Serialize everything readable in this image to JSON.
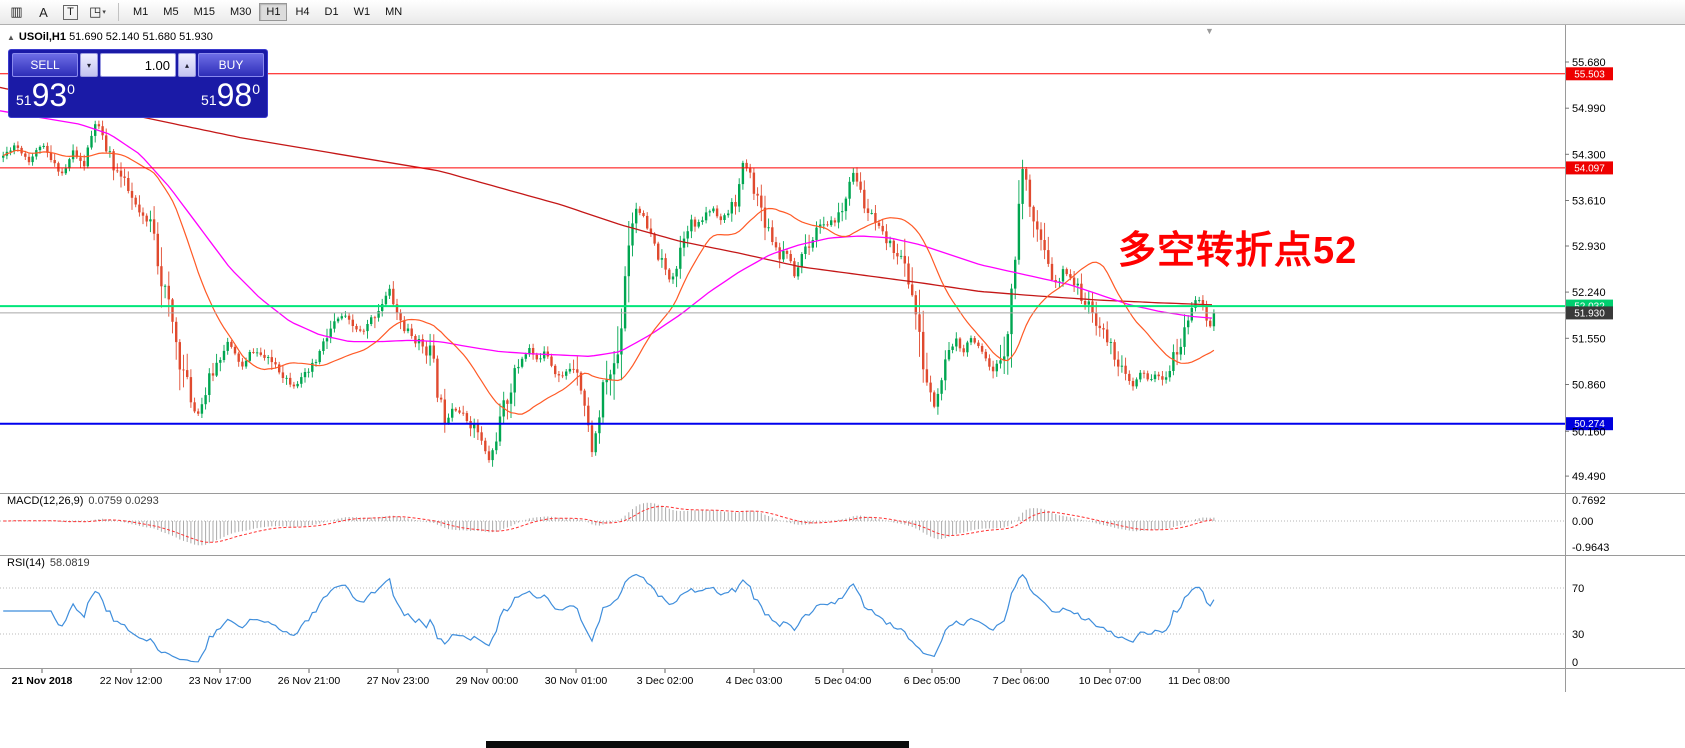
{
  "icons": {
    "collapse": "▲",
    "shift_marker": "▼",
    "volume_up": "▴",
    "volume_down": "▾",
    "tool_dropdown": "▾"
  },
  "toolbar": {
    "tools": [
      {
        "name": "chart-grid-icon",
        "glyph": "▥",
        "dropdown": false
      },
      {
        "name": "text-label-icon",
        "glyph": "A",
        "dropdown": false
      },
      {
        "name": "text-box-icon",
        "glyph": "T",
        "dropdown": false,
        "boxed": true
      },
      {
        "name": "shapes-tool-icon",
        "glyph": "◳",
        "dropdown": true
      }
    ],
    "timeframes": [
      {
        "label": "M1",
        "active": false
      },
      {
        "label": "M5",
        "active": false
      },
      {
        "label": "M15",
        "active": false
      },
      {
        "label": "M30",
        "active": false
      },
      {
        "label": "H1",
        "active": true
      },
      {
        "label": "H4",
        "active": false
      },
      {
        "label": "D1",
        "active": false
      },
      {
        "label": "W1",
        "active": false
      },
      {
        "label": "MN",
        "active": false
      }
    ]
  },
  "chart": {
    "title_symbol": "USOil,H1",
    "title_ohlc": "51.690 52.140 51.680 51.930",
    "trade_panel": {
      "sell_label": "SELL",
      "buy_label": "BUY",
      "volume": "1.00",
      "sell_small": "51",
      "sell_big": "93",
      "sell_sup": "0",
      "buy_small": "51",
      "buy_big": "98",
      "buy_sup": "0"
    },
    "annotation": {
      "text": "多空转折点52",
      "color": "#ff0000"
    },
    "current_price": "51.930",
    "hlines": [
      {
        "price": 55.503,
        "label": "55.503",
        "color": "#ff0000",
        "tag_bg": "#ee0000",
        "tag_fg": "#ffffff",
        "width": 1
      },
      {
        "price": 54.097,
        "label": "54.097",
        "color": "#ff0000",
        "tag_bg": "#ee0000",
        "tag_fg": "#ffffff",
        "width": 1
      },
      {
        "price": 52.032,
        "label": "52.032",
        "color": "#00e67a",
        "tag_bg": "#00cf6f",
        "tag_fg": "#ffffff",
        "width": 2
      },
      {
        "price": 51.93,
        "label": "51.930",
        "color": "#a8a8a8",
        "tag_bg": "#3a3a3a",
        "tag_fg": "#ffffff",
        "width": 1
      },
      {
        "price": 50.274,
        "label": "50.274",
        "color": "#0000ee",
        "tag_bg": "#0000dd",
        "tag_fg": "#ffffff",
        "width": 2
      }
    ]
  },
  "chart_data": {
    "type": "candlestick",
    "symbol": "USOil",
    "timeframe": "H1",
    "bars": 330,
    "last_close": 51.93,
    "price_axis_labels": [
      "55.680",
      "54.990",
      "54.300",
      "53.610",
      "52.930",
      "52.240",
      "51.550",
      "50.860",
      "50.160",
      "49.490"
    ],
    "time_ticks": [
      "21 Nov 2018",
      "22 Nov 12:00",
      "23 Nov 17:00",
      "26 Nov 21:00",
      "27 Nov 23:00",
      "29 Nov 00:00",
      "30 Nov 01:00",
      "3 Dec 02:00",
      "4 Dec 03:00",
      "5 Dec 04:00",
      "6 Dec 05:00",
      "7 Dec 06:00",
      "10 Dec 07:00",
      "11 Dec 08:00"
    ],
    "close_path": [
      [
        0,
        54.25
      ],
      [
        14,
        54.45
      ],
      [
        28,
        54.2
      ],
      [
        40,
        54.45
      ],
      [
        52,
        54.15
      ],
      [
        62,
        54.0
      ],
      [
        72,
        54.35
      ],
      [
        82,
        54.1
      ],
      [
        95,
        54.82
      ],
      [
        103,
        54.45
      ],
      [
        112,
        54.15
      ],
      [
        122,
        53.9
      ],
      [
        133,
        53.55
      ],
      [
        144,
        53.25
      ],
      [
        152,
        53.3
      ],
      [
        158,
        52.6
      ],
      [
        165,
        52.15
      ],
      [
        172,
        51.7
      ],
      [
        180,
        51.15
      ],
      [
        188,
        50.75
      ],
      [
        195,
        50.38
      ],
      [
        202,
        50.62
      ],
      [
        210,
        51.0
      ],
      [
        218,
        51.25
      ],
      [
        226,
        51.5
      ],
      [
        234,
        51.3
      ],
      [
        242,
        51.1
      ],
      [
        250,
        51.38
      ],
      [
        258,
        51.32
      ],
      [
        266,
        51.22
      ],
      [
        274,
        51.18
      ],
      [
        282,
        51.0
      ],
      [
        292,
        50.85
      ],
      [
        302,
        50.95
      ],
      [
        312,
        51.12
      ],
      [
        322,
        51.45
      ],
      [
        332,
        51.75
      ],
      [
        342,
        51.9
      ],
      [
        352,
        51.72
      ],
      [
        362,
        51.62
      ],
      [
        372,
        51.88
      ],
      [
        382,
        52.1
      ],
      [
        388,
        52.28
      ],
      [
        395,
        51.95
      ],
      [
        403,
        51.7
      ],
      [
        412,
        51.55
      ],
      [
        422,
        51.45
      ],
      [
        430,
        51.35
      ],
      [
        437,
        50.7
      ],
      [
        444,
        50.35
      ],
      [
        452,
        50.55
      ],
      [
        460,
        50.42
      ],
      [
        468,
        50.3
      ],
      [
        476,
        50.18
      ],
      [
        484,
        49.85
      ],
      [
        489,
        49.7
      ],
      [
        496,
        50.15
      ],
      [
        504,
        50.55
      ],
      [
        512,
        50.95
      ],
      [
        520,
        51.25
      ],
      [
        528,
        51.4
      ],
      [
        536,
        51.2
      ],
      [
        544,
        51.42
      ],
      [
        552,
        51.1
      ],
      [
        560,
        50.95
      ],
      [
        568,
        51.1
      ],
      [
        576,
        51.15
      ],
      [
        584,
        50.5
      ],
      [
        591,
        49.85
      ],
      [
        597,
        50.3
      ],
      [
        604,
        50.95
      ],
      [
        611,
        51.05
      ],
      [
        618,
        51.4
      ],
      [
        624,
        52.6
      ],
      [
        630,
        53.3
      ],
      [
        636,
        53.55
      ],
      [
        644,
        53.25
      ],
      [
        652,
        52.95
      ],
      [
        660,
        52.7
      ],
      [
        668,
        52.45
      ],
      [
        675,
        52.6
      ],
      [
        681,
        53.05
      ],
      [
        688,
        53.3
      ],
      [
        696,
        53.2
      ],
      [
        704,
        53.4
      ],
      [
        712,
        53.5
      ],
      [
        720,
        53.3
      ],
      [
        728,
        53.45
      ],
      [
        736,
        53.65
      ],
      [
        742,
        54.15
      ],
      [
        748,
        54.05
      ],
      [
        755,
        53.7
      ],
      [
        762,
        53.4
      ],
      [
        770,
        53.1
      ],
      [
        778,
        52.8
      ],
      [
        786,
        52.85
      ],
      [
        794,
        52.45
      ],
      [
        802,
        52.9
      ],
      [
        810,
        53.0
      ],
      [
        818,
        53.3
      ],
      [
        826,
        53.2
      ],
      [
        834,
        53.35
      ],
      [
        842,
        53.45
      ],
      [
        850,
        54.05
      ],
      [
        856,
        53.9
      ],
      [
        864,
        53.5
      ],
      [
        872,
        53.3
      ],
      [
        880,
        53.1
      ],
      [
        888,
        52.95
      ],
      [
        896,
        52.85
      ],
      [
        904,
        52.6
      ],
      [
        912,
        52.2
      ],
      [
        919,
        51.4
      ],
      [
        927,
        50.8
      ],
      [
        934,
        50.5
      ],
      [
        941,
        51.0
      ],
      [
        948,
        51.3
      ],
      [
        955,
        51.55
      ],
      [
        962,
        51.35
      ],
      [
        970,
        51.6
      ],
      [
        978,
        51.35
      ],
      [
        986,
        51.15
      ],
      [
        993,
        51.0
      ],
      [
        1000,
        51.3
      ],
      [
        1007,
        51.8
      ],
      [
        1013,
        52.5
      ],
      [
        1018,
        53.8
      ],
      [
        1022,
        54.1
      ],
      [
        1027,
        53.7
      ],
      [
        1033,
        53.35
      ],
      [
        1040,
        52.95
      ],
      [
        1048,
        52.55
      ],
      [
        1056,
        52.3
      ],
      [
        1063,
        52.6
      ],
      [
        1070,
        52.45
      ],
      [
        1078,
        52.25
      ],
      [
        1086,
        52.05
      ],
      [
        1094,
        51.85
      ],
      [
        1101,
        51.65
      ],
      [
        1109,
        51.45
      ],
      [
        1117,
        51.2
      ],
      [
        1125,
        50.95
      ],
      [
        1132,
        50.82
      ],
      [
        1140,
        51.05
      ],
      [
        1147,
        50.92
      ],
      [
        1154,
        51.02
      ],
      [
        1161,
        50.88
      ],
      [
        1168,
        51.1
      ],
      [
        1176,
        51.35
      ],
      [
        1183,
        51.6
      ],
      [
        1190,
        52.05
      ],
      [
        1196,
        52.2
      ],
      [
        1202,
        52.0
      ],
      [
        1208,
        51.68
      ],
      [
        1213,
        51.93
      ]
    ],
    "ma_medium_path": [
      [
        0,
        54.95
      ],
      [
        40,
        54.85
      ],
      [
        80,
        54.75
      ],
      [
        110,
        54.6
      ],
      [
        140,
        54.3
      ],
      [
        170,
        53.8
      ],
      [
        200,
        53.2
      ],
      [
        230,
        52.6
      ],
      [
        260,
        52.15
      ],
      [
        290,
        51.8
      ],
      [
        320,
        51.6
      ],
      [
        350,
        51.5
      ],
      [
        380,
        51.5
      ],
      [
        410,
        51.52
      ],
      [
        440,
        51.5
      ],
      [
        470,
        51.42
      ],
      [
        500,
        51.35
      ],
      [
        530,
        51.32
      ],
      [
        560,
        51.3
      ],
      [
        590,
        51.28
      ],
      [
        620,
        51.35
      ],
      [
        650,
        51.6
      ],
      [
        680,
        51.9
      ],
      [
        710,
        52.25
      ],
      [
        740,
        52.55
      ],
      [
        770,
        52.8
      ],
      [
        800,
        52.95
      ],
      [
        830,
        53.05
      ],
      [
        860,
        53.08
      ],
      [
        890,
        53.05
      ],
      [
        920,
        52.95
      ],
      [
        950,
        52.8
      ],
      [
        980,
        52.65
      ],
      [
        1010,
        52.55
      ],
      [
        1040,
        52.45
      ],
      [
        1070,
        52.35
      ],
      [
        1100,
        52.2
      ],
      [
        1130,
        52.05
      ],
      [
        1160,
        51.95
      ],
      [
        1190,
        51.88
      ],
      [
        1213,
        51.85
      ]
    ],
    "ma_slow_path": [
      [
        0,
        55.3
      ],
      [
        80,
        55.05
      ],
      [
        160,
        54.8
      ],
      [
        240,
        54.55
      ],
      [
        320,
        54.35
      ],
      [
        400,
        54.15
      ],
      [
        440,
        54.05
      ],
      [
        500,
        53.8
      ],
      [
        560,
        53.55
      ],
      [
        620,
        53.25
      ],
      [
        680,
        53.0
      ],
      [
        740,
        52.82
      ],
      [
        800,
        52.62
      ],
      [
        860,
        52.5
      ],
      [
        920,
        52.38
      ],
      [
        980,
        52.25
      ],
      [
        1040,
        52.18
      ],
      [
        1100,
        52.12
      ],
      [
        1160,
        52.08
      ],
      [
        1213,
        52.05
      ]
    ],
    "macd": {
      "name": "MACD(12,26,9)",
      "values": "0.0759 0.0293",
      "axis": [
        {
          "label": "0.7692",
          "value": 0.7692
        },
        {
          "label": "0.00",
          "value": 0
        },
        {
          "label": "-0.9643",
          "value": -0.9643
        }
      ]
    },
    "rsi": {
      "name": "RSI(14)",
      "value": "58.0819",
      "levels": [
        70,
        30
      ],
      "axis": [
        {
          "label": "70",
          "value": 70
        },
        {
          "label": "30",
          "value": 30
        },
        {
          "label": "0",
          "value": 0
        }
      ]
    },
    "colors": {
      "up": "#00a651",
      "down": "#e04a2f",
      "ma_fast": "#ff5a26",
      "ma_medium": "#ff00ff",
      "ma_slow": "#c41717",
      "macd_hist": "#ababab",
      "macd_signal": "#ff3333",
      "rsi": "#3f8edc"
    }
  }
}
